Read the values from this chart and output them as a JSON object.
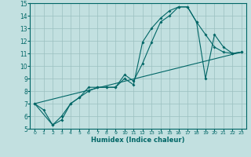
{
  "xlabel": "Humidex (Indice chaleur)",
  "bg_color": "#c2e0e0",
  "line_color": "#006666",
  "xlim": [
    -0.5,
    23.5
  ],
  "ylim": [
    5,
    15
  ],
  "line1_x": [
    0,
    1,
    2,
    3,
    4,
    5,
    6,
    7,
    8,
    9,
    10,
    11,
    12,
    13,
    14,
    15,
    16,
    17,
    18,
    19,
    20,
    21,
    22,
    23
  ],
  "line1_y": [
    7.0,
    6.5,
    5.3,
    5.7,
    7.0,
    7.5,
    8.3,
    8.3,
    8.3,
    8.3,
    9.0,
    8.5,
    11.9,
    13.0,
    13.8,
    14.4,
    14.7,
    14.7,
    13.5,
    12.5,
    11.5,
    11.1,
    11.0,
    11.1
  ],
  "line2_x": [
    0,
    2,
    3,
    4,
    5,
    6,
    7,
    8,
    9,
    10,
    11,
    12,
    13,
    14,
    15,
    16,
    17,
    18,
    19,
    20,
    21,
    22,
    23
  ],
  "line2_y": [
    7.0,
    5.3,
    6.0,
    7.0,
    7.5,
    8.0,
    8.3,
    8.3,
    8.3,
    9.3,
    8.8,
    10.2,
    11.9,
    13.5,
    14.0,
    14.7,
    14.7,
    13.5,
    9.0,
    12.5,
    11.5,
    11.0,
    11.1
  ],
  "line3_x": [
    0,
    23
  ],
  "line3_y": [
    7.0,
    11.1
  ],
  "xticks": [
    0,
    1,
    2,
    3,
    4,
    5,
    6,
    7,
    8,
    9,
    10,
    11,
    12,
    13,
    14,
    15,
    16,
    17,
    18,
    19,
    20,
    21,
    22,
    23
  ],
  "yticks": [
    5,
    6,
    7,
    8,
    9,
    10,
    11,
    12,
    13,
    14,
    15
  ],
  "xtick_fontsize": 4.5,
  "ytick_fontsize": 5.5,
  "xlabel_fontsize": 6.0
}
